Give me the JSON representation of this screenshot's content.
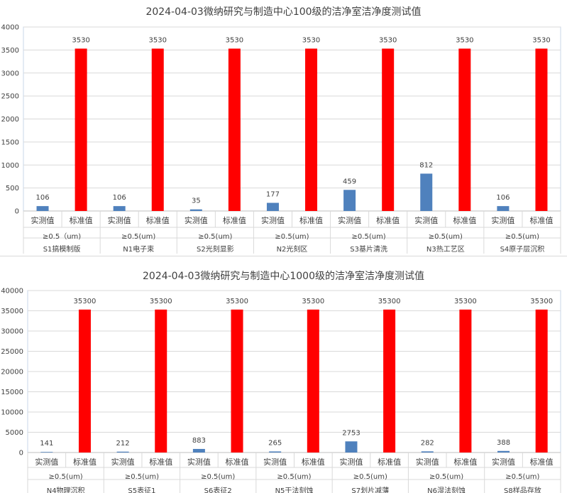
{
  "chart_data": [
    {
      "type": "bar",
      "title": "2024-04-03微纳研究与制造中心100级的洁净室洁净度测试值",
      "ylim": [
        0,
        4000
      ],
      "yticks": [
        0,
        500,
        1000,
        1500,
        2000,
        2500,
        3000,
        3500,
        4000
      ],
      "series_labels": [
        "实测值",
        "标准值"
      ],
      "colors": {
        "measured": "#4f81bd",
        "standard": "#ff0000"
      },
      "grid": true,
      "groups": [
        {
          "size": "≥0.5（um)",
          "area": "S1搞模制版",
          "measured": 106,
          "standard": 3530
        },
        {
          "size": "≥0.5(um)",
          "area": "N1电子束",
          "measured": 106,
          "standard": 3530
        },
        {
          "size": "≥0.5(um)",
          "area": "S2光刻显影",
          "measured": 35,
          "standard": 3530
        },
        {
          "size": "≥0.5(um)",
          "area": "N2光刻区",
          "measured": 177,
          "standard": 3530
        },
        {
          "size": "≥0.5(um)",
          "area": "S3基片清洗",
          "measured": 459,
          "standard": 3530
        },
        {
          "size": "≥0.5(um)",
          "area": "N3热工艺区",
          "measured": 812,
          "standard": 3530
        },
        {
          "size": "≥0.5(um)",
          "area": "S4原子层沉积",
          "measured": 106,
          "standard": 3530
        }
      ]
    },
    {
      "type": "bar",
      "title": "2024-04-03微纳研究与制造中心1000级的洁净室洁净度测试值",
      "ylim": [
        0,
        40000
      ],
      "yticks": [
        0,
        5000,
        10000,
        15000,
        20000,
        25000,
        30000,
        35000,
        40000
      ],
      "series_labels": [
        "实测值",
        "标准值"
      ],
      "colors": {
        "measured": "#4f81bd",
        "standard": "#ff0000"
      },
      "grid": true,
      "groups": [
        {
          "size": "≥0.5(um)",
          "area": "N4物理沉积",
          "measured": 141,
          "standard": 35300
        },
        {
          "size": "≥0.5(um)",
          "area": "S5表征1",
          "measured": 212,
          "standard": 35300
        },
        {
          "size": "≥0.5(um)",
          "area": "S6表征2",
          "measured": 883,
          "standard": 35300
        },
        {
          "size": "≥0.5(um)",
          "area": "N5干法刻蚀",
          "measured": 265,
          "standard": 35300
        },
        {
          "size": "≥0.5(um)",
          "area": "S7划片减薄",
          "measured": 2753,
          "standard": 35300
        },
        {
          "size": "≥0.5(um)",
          "area": "N6湿法刻蚀",
          "measured": 282,
          "standard": 35300
        },
        {
          "size": "≥0.5(um)",
          "area": "S8样品存放",
          "measured": 388,
          "standard": 35300
        }
      ]
    }
  ]
}
